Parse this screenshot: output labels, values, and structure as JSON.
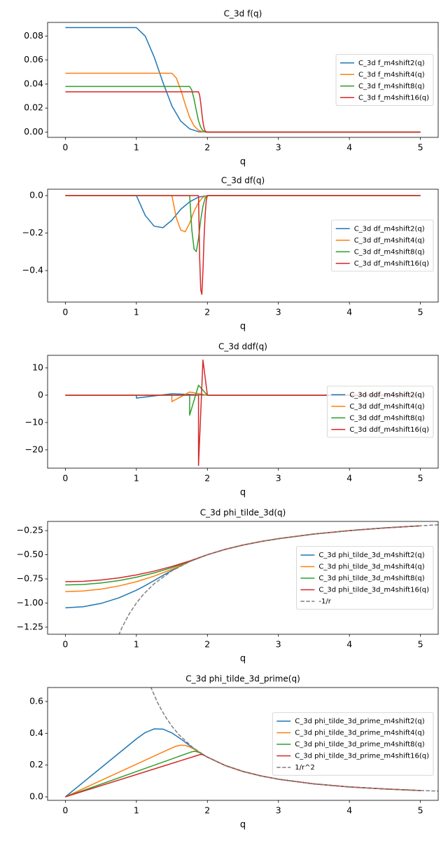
{
  "chart_data": [
    {
      "type": "line",
      "title": "C_3d f(q)",
      "xlabel": "q",
      "xlim": [
        -0.25,
        5.25
      ],
      "xticks": [
        0,
        1,
        2,
        3,
        4,
        5
      ],
      "ylim": [
        -0.0044,
        0.0913
      ],
      "yticks": [
        {
          "value": 0,
          "label": "0.00"
        },
        {
          "value": 0.02,
          "label": "0.02"
        },
        {
          "value": 0.04,
          "label": "0.04"
        },
        {
          "value": 0.06,
          "label": "0.06"
        },
        {
          "value": 0.08,
          "label": "0.08"
        }
      ],
      "legend": "center right",
      "series": [
        {
          "name": "C_3d f_m4shift2(q)",
          "color": "#1f77b4",
          "x": [
            0,
            1,
            1.125,
            1.25,
            1.375,
            1.5,
            1.625,
            1.75,
            1.875,
            2,
            5
          ],
          "values": [
            0.087,
            0.087,
            0.0799,
            0.0626,
            0.0412,
            0.0218,
            0.0091,
            0.0027,
            0.0003,
            0,
            0
          ]
        },
        {
          "name": "C_3d f_m4shift4(q)",
          "color": "#ff7f0e",
          "x": [
            0,
            1.5,
            1.5625,
            1.625,
            1.6875,
            1.75,
            1.8125,
            1.875,
            1.9375,
            2,
            5
          ],
          "values": [
            0.049,
            0.049,
            0.045,
            0.0352,
            0.0232,
            0.0123,
            0.0051,
            0.0015,
            0.0002,
            0,
            0
          ]
        },
        {
          "name": "C_3d f_m4shift8(q)",
          "color": "#2ca02c",
          "x": [
            0,
            1.75,
            1.7813,
            1.8125,
            1.8438,
            1.875,
            1.9063,
            1.9375,
            1.9688,
            2,
            5
          ],
          "values": [
            0.038,
            0.038,
            0.0349,
            0.0273,
            0.018,
            0.0095,
            0.004,
            0.0012,
            0.0001,
            0,
            0
          ]
        },
        {
          "name": "C_3d f_m4shift16(q)",
          "color": "#d62728",
          "x": [
            0,
            1.875,
            1.8906,
            1.9063,
            1.9219,
            1.9375,
            1.9531,
            1.9688,
            1.9844,
            2,
            5
          ],
          "values": [
            0.0335,
            0.0335,
            0.0308,
            0.0241,
            0.0158,
            0.0084,
            0.0035,
            0.001,
            0.0001,
            0,
            0
          ]
        }
      ]
    },
    {
      "type": "line",
      "title": "C_3d df(q)",
      "xlabel": "q",
      "xlim": [
        -0.25,
        5.25
      ],
      "xticks": [
        0,
        1,
        2,
        3,
        4,
        5
      ],
      "ylim": [
        -0.568,
        0.034
      ],
      "yticks": [
        {
          "value": -0.4,
          "label": "−0.4"
        },
        {
          "value": -0.2,
          "label": "−0.2"
        },
        {
          "value": 0,
          "label": "0.0"
        }
      ],
      "legend": "center right",
      "series": [
        {
          "name": "C_3d df_m4shift2(q)",
          "color": "#1f77b4",
          "x": [
            0,
            1,
            1.125,
            1.25,
            1.375,
            1.5,
            1.625,
            1.75,
            1.875,
            2,
            5
          ],
          "values": [
            0,
            0,
            -0.106,
            -0.163,
            -0.171,
            -0.131,
            -0.073,
            -0.033,
            -0.008,
            0,
            0
          ]
        },
        {
          "name": "C_3d df_m4shift4(q)",
          "color": "#ff7f0e",
          "x": [
            0,
            1.5,
            1.5625,
            1.625,
            1.6875,
            1.75,
            1.8125,
            1.875,
            1.9375,
            2,
            5
          ],
          "values": [
            0,
            0,
            -0.119,
            -0.184,
            -0.193,
            -0.147,
            -0.083,
            -0.037,
            -0.009,
            0,
            0
          ]
        },
        {
          "name": "C_3d df_m4shift8(q)",
          "color": "#2ca02c",
          "x": [
            0,
            1.75,
            1.7813,
            1.8125,
            1.8438,
            1.875,
            1.9063,
            1.9375,
            1.9688,
            2,
            5
          ],
          "values": [
            0,
            0,
            -0.185,
            -0.285,
            -0.299,
            -0.228,
            -0.128,
            -0.057,
            -0.014,
            0,
            0
          ]
        },
        {
          "name": "C_3d df_m4shift16(q)",
          "color": "#d62728",
          "x": [
            0,
            1.875,
            1.8906,
            1.9063,
            1.9219,
            1.9375,
            1.9531,
            1.9688,
            1.9844,
            2,
            5
          ],
          "values": [
            0,
            0,
            -0.326,
            -0.503,
            -0.527,
            -0.402,
            -0.226,
            -0.1,
            -0.025,
            0,
            0
          ]
        }
      ]
    },
    {
      "type": "line",
      "title": "C_3d ddf(q)",
      "xlabel": "q",
      "xlim": [
        -0.25,
        5.25
      ],
      "xticks": [
        0,
        1,
        2,
        3,
        4,
        5
      ],
      "ylim": [
        -26.7,
        14.6
      ],
      "yticks": [
        {
          "value": -20,
          "label": "−20"
        },
        {
          "value": -10,
          "label": "−10"
        },
        0,
        10
      ],
      "legend": "center right",
      "series": [
        {
          "name": "C_3d ddf_m4shift2(q)",
          "color": "#1f77b4",
          "x": [
            0,
            1,
            1,
            1.125,
            1.25,
            1.375,
            1.5,
            1.625,
            1.75,
            1.875,
            2,
            5
          ],
          "values": [
            0,
            0,
            -1.044,
            -0.653,
            -0.261,
            0.131,
            0.522,
            0.392,
            0.261,
            0.131,
            0,
            0
          ]
        },
        {
          "name": "C_3d ddf_m4shift4(q)",
          "color": "#ff7f0e",
          "x": [
            0,
            1.5,
            1.5,
            1.5625,
            1.625,
            1.6875,
            1.75,
            1.8125,
            1.875,
            1.9375,
            2,
            5
          ],
          "values": [
            0,
            0,
            -2.352,
            -1.47,
            -0.588,
            0.294,
            1.176,
            0.882,
            0.588,
            0.294,
            0,
            0
          ]
        },
        {
          "name": "C_3d ddf_m4shift8(q)",
          "color": "#2ca02c",
          "x": [
            0,
            1.75,
            1.75,
            1.7813,
            1.8125,
            1.8438,
            1.875,
            1.9063,
            1.9375,
            1.9688,
            2,
            5
          ],
          "values": [
            0,
            0,
            -7.296,
            -4.56,
            -1.824,
            0.912,
            3.648,
            2.736,
            1.824,
            0.912,
            0,
            0
          ]
        },
        {
          "name": "C_3d ddf_m4shift16(q)",
          "color": "#d62728",
          "x": [
            0,
            1.875,
            1.875,
            1.8906,
            1.9063,
            1.9219,
            1.9375,
            1.9531,
            1.9688,
            1.9844,
            2,
            5
          ],
          "values": [
            0,
            0,
            -25.73,
            -16.08,
            -6.43,
            3.216,
            12.86,
            9.648,
            6.432,
            3.216,
            0,
            0
          ]
        }
      ]
    },
    {
      "type": "line",
      "title": "C_3d phi_tilde_3d(q)",
      "xlabel": "q",
      "xlim": [
        -0.25,
        5.25
      ],
      "xticks": [
        0,
        1,
        2,
        3,
        4,
        5
      ],
      "ylim": [
        -1.323,
        -0.155
      ],
      "yticks": [
        {
          "value": -1.25,
          "label": "−1.25"
        },
        {
          "value": -1,
          "label": "−1.00"
        },
        {
          "value": -0.75,
          "label": "−0.75"
        },
        {
          "value": -0.5,
          "label": "−0.50"
        },
        {
          "value": -0.25,
          "label": "−0.25"
        }
      ],
      "legend": "center right",
      "series": [
        {
          "name": "C_3d phi_tilde_3d_m4shift2(q)",
          "color": "#1f77b4",
          "x": [
            0,
            0.25,
            0.5,
            0.75,
            1,
            1.125,
            1.25,
            1.375,
            1.5,
            1.625,
            1.75,
            1.875,
            2,
            2.25,
            2.5,
            2.75,
            3,
            3.5,
            4,
            4.5,
            5
          ],
          "values": [
            -1.0495,
            -1.0381,
            -1.004,
            -0.947,
            -0.8673,
            -0.8193,
            -0.7673,
            -0.7139,
            -0.6621,
            -0.6142,
            -0.5712,
            -0.5333,
            -0.5,
            -0.4444,
            -0.4,
            -0.3636,
            -0.3333,
            -0.2857,
            -0.25,
            -0.2222,
            -0.2
          ]
        },
        {
          "name": "C_3d phi_tilde_3d_m4shift4(q)",
          "color": "#ff7f0e",
          "x": [
            0,
            0.25,
            0.5,
            0.75,
            1,
            1.25,
            1.5,
            1.5625,
            1.625,
            1.6875,
            1.75,
            1.8125,
            1.875,
            1.9375,
            2,
            2.25,
            2.5,
            2.75,
            3,
            3.5,
            4,
            4.5,
            5
          ],
          "values": [
            -0.8815,
            -0.8751,
            -0.8558,
            -0.8238,
            -0.7789,
            -0.7211,
            -0.6505,
            -0.6309,
            -0.6108,
            -0.5905,
            -0.5706,
            -0.5514,
            -0.5332,
            -0.5161,
            -0.5,
            -0.4444,
            -0.4,
            -0.3636,
            -0.3333,
            -0.2857,
            -0.25,
            -0.2222,
            -0.2
          ]
        },
        {
          "name": "C_3d phi_tilde_3d_m4shift8(q)",
          "color": "#2ca02c",
          "x": [
            0,
            0.25,
            0.5,
            0.75,
            1,
            1.25,
            1.5,
            1.75,
            1.8125,
            1.875,
            1.9375,
            2,
            2.25,
            2.5,
            2.75,
            3,
            3.5,
            4,
            4.5,
            5
          ],
          "values": [
            -0.8125,
            -0.8075,
            -0.7926,
            -0.7677,
            -0.7329,
            -0.6881,
            -0.6334,
            -0.5687,
            -0.551,
            -0.5332,
            -0.5161,
            -0.5,
            -0.4444,
            -0.4,
            -0.3636,
            -0.3333,
            -0.2857,
            -0.25,
            -0.2222,
            -0.2
          ]
        },
        {
          "name": "C_3d phi_tilde_3d_m4shift16(q)",
          "color": "#d62728",
          "x": [
            0,
            0.25,
            0.5,
            0.75,
            1,
            1.25,
            1.5,
            1.75,
            1.875,
            1.9063,
            1.9375,
            1.9688,
            2,
            2.25,
            2.5,
            2.75,
            3,
            3.5,
            4,
            4.5,
            5
          ],
          "values": [
            -0.7793,
            -0.7749,
            -0.7618,
            -0.7398,
            -0.7092,
            -0.6697,
            -0.6215,
            -0.5645,
            -0.5327,
            -0.5244,
            -0.5161,
            -0.5079,
            -0.5,
            -0.4444,
            -0.4,
            -0.3636,
            -0.3333,
            -0.2857,
            -0.25,
            -0.2222,
            -0.2
          ]
        },
        {
          "name": "-1/r",
          "color": "#7f7f7f",
          "linestyle": "dashed",
          "x": [
            0.75,
            0.8,
            0.9,
            1,
            1.1,
            1.25,
            1.5,
            1.75,
            2,
            2.25,
            2.5,
            2.75,
            3,
            3.5,
            4,
            4.5,
            5,
            5.25
          ],
          "values": [
            -1.3333,
            -1.25,
            -1.1111,
            -1,
            -0.9091,
            -0.8,
            -0.6667,
            -0.5714,
            -0.5,
            -0.4444,
            -0.4,
            -0.3636,
            -0.3333,
            -0.2857,
            -0.25,
            -0.2222,
            -0.2,
            -0.1905
          ]
        }
      ]
    },
    {
      "type": "line",
      "title": "C_3d phi_tilde_3d_prime(q)",
      "xlabel": "q",
      "xlim": [
        -0.25,
        5.25
      ],
      "xticks": [
        0,
        1,
        2,
        3,
        4,
        5
      ],
      "ylim": [
        -0.022,
        0.688
      ],
      "yticks": [
        {
          "value": 0,
          "label": "0.0"
        },
        0.2,
        0.4,
        0.6
      ],
      "legend": "center right",
      "series": [
        {
          "name": "C_3d phi_tilde_3d_prime_m4shift2(q)",
          "color": "#1f77b4",
          "x": [
            0,
            1,
            1.125,
            1.25,
            1.375,
            1.5,
            1.625,
            1.75,
            1.875,
            2,
            2.25,
            2.5,
            2.75,
            3,
            3.5,
            4,
            4.5,
            5
          ],
          "values": [
            0,
            0.3644,
            0.4046,
            0.4276,
            0.4263,
            0.4024,
            0.3647,
            0.3227,
            0.2833,
            0.25,
            0.1975,
            0.16,
            0.1322,
            0.1111,
            0.0816,
            0.0625,
            0.0494,
            0.04
          ]
        },
        {
          "name": "C_3d phi_tilde_3d_prime_m4shift4(q)",
          "color": "#ff7f0e",
          "x": [
            0,
            1.5,
            1.5625,
            1.625,
            1.6875,
            1.75,
            1.8125,
            1.875,
            1.9375,
            2,
            2.25,
            2.5,
            2.75,
            3,
            3.5,
            4,
            4.5,
            5
          ],
          "values": [
            0,
            0.308,
            0.3192,
            0.3253,
            0.3236,
            0.3142,
            0.2994,
            0.2822,
            0.265,
            0.25,
            0.1975,
            0.16,
            0.1322,
            0.1111,
            0.0816,
            0.0625,
            0.0494,
            0.04
          ]
        },
        {
          "name": "C_3d phi_tilde_3d_prime_m4shift8(q)",
          "color": "#2ca02c",
          "x": [
            0,
            1.75,
            1.7813,
            1.8125,
            1.8438,
            1.875,
            1.9063,
            1.9375,
            1.9688,
            2,
            2.25,
            2.5,
            2.75,
            3,
            3.5,
            4,
            4.5,
            5
          ],
          "values": [
            0,
            0.2786,
            0.2837,
            0.2862,
            0.2851,
            0.2807,
            0.274,
            0.2661,
            0.258,
            0.25,
            0.1975,
            0.16,
            0.1322,
            0.1111,
            0.0816,
            0.0625,
            0.0494,
            0.04
          ]
        },
        {
          "name": "C_3d phi_tilde_3d_prime_m4shift16(q)",
          "color": "#d62728",
          "x": [
            0,
            1.875,
            1.8906,
            1.9063,
            1.9219,
            1.9375,
            1.9531,
            1.9688,
            1.9844,
            2,
            2.25,
            2.5,
            2.75,
            3,
            3.5,
            4,
            4.5,
            5
          ],
          "values": [
            0,
            0.2631,
            0.2654,
            0.2668,
            0.2665,
            0.2646,
            0.2616,
            0.2579,
            0.254,
            0.25,
            0.1975,
            0.16,
            0.1322,
            0.1111,
            0.0816,
            0.0625,
            0.0494,
            0.04
          ]
        },
        {
          "name": "1/r^2",
          "color": "#7f7f7f",
          "linestyle": "dashed",
          "x": [
            1.2,
            1.3,
            1.4,
            1.5,
            1.6,
            1.8,
            2,
            2.25,
            2.5,
            2.75,
            3,
            3.5,
            4,
            4.5,
            5,
            5.25
          ],
          "values": [
            0.6944,
            0.5917,
            0.5102,
            0.4444,
            0.3906,
            0.3086,
            0.25,
            0.1975,
            0.16,
            0.1322,
            0.1111,
            0.0816,
            0.0625,
            0.0494,
            0.04,
            0.0363
          ]
        }
      ]
    }
  ]
}
